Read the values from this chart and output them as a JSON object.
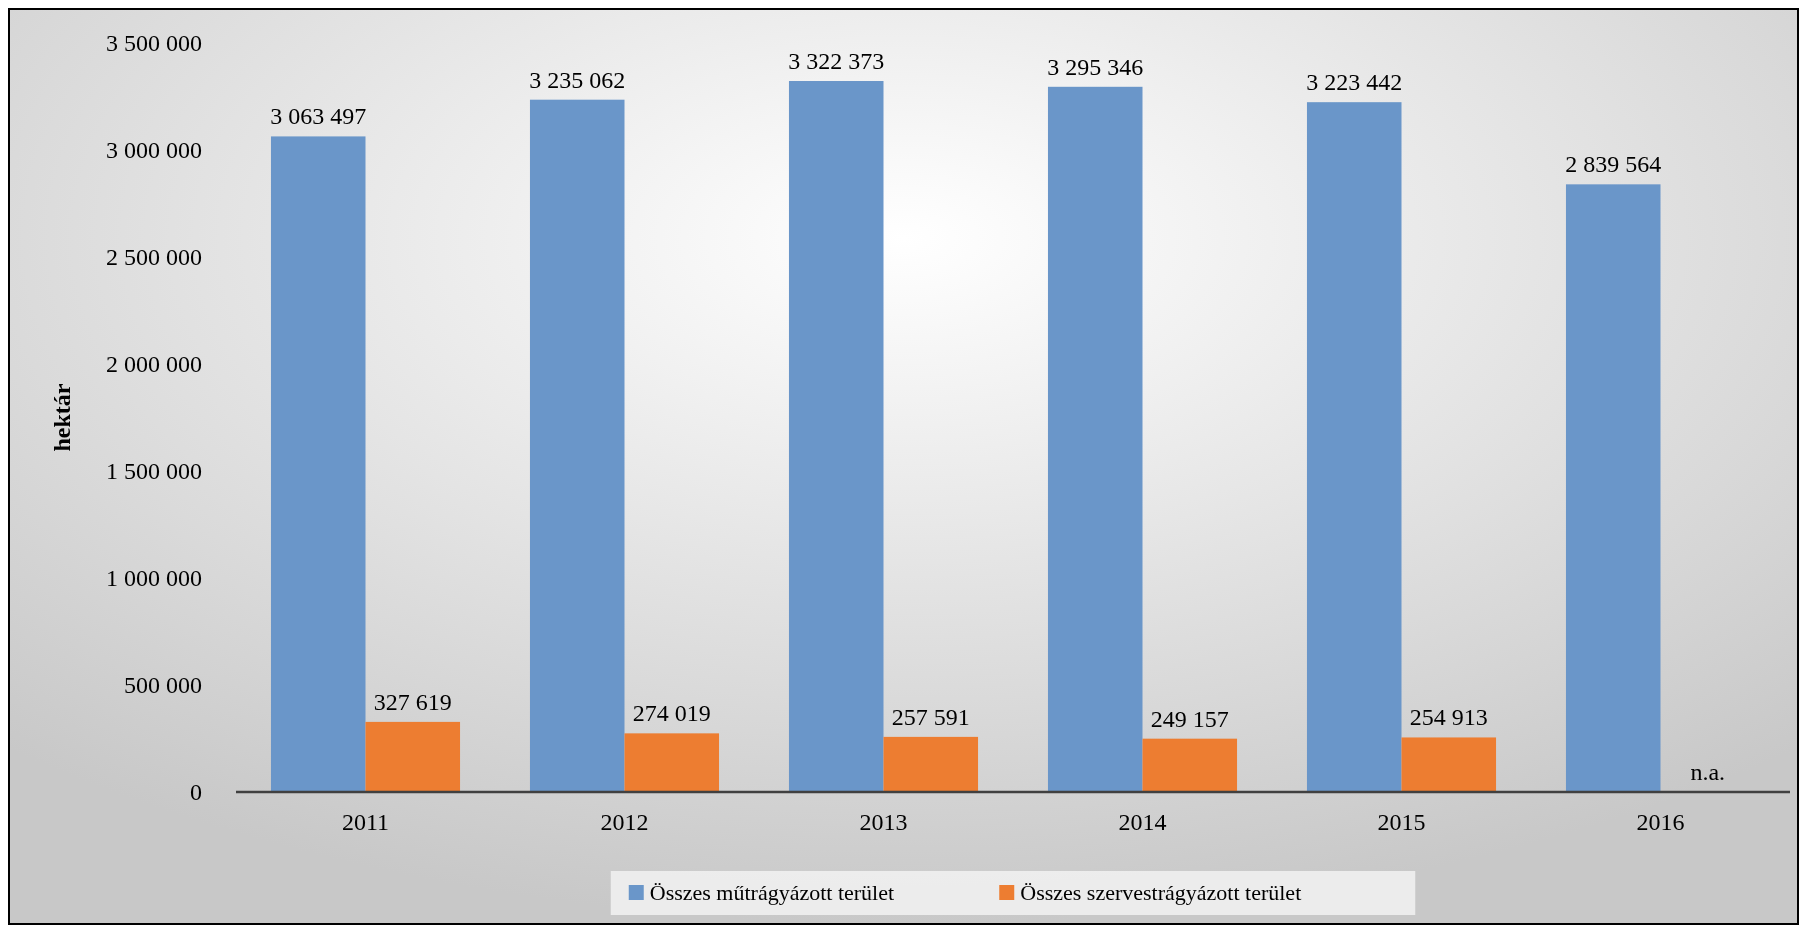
{
  "chart_data": {
    "type": "bar",
    "ylabel": "hektár",
    "categories": [
      "2011",
      "2012",
      "2013",
      "2014",
      "2015",
      "2016"
    ],
    "series": [
      {
        "name": "Összes műtrágyázott terület",
        "color": "#6a96c9",
        "values": [
          3063497,
          3235062,
          3322373,
          3295346,
          3223442,
          2839564
        ],
        "value_labels": [
          "3 063 497",
          "3 235 062",
          "3 322 373",
          "3 295 346",
          "3 223 442",
          "2 839 564"
        ]
      },
      {
        "name": "Összes szervestrágyázott terület",
        "color": "#ed7d31",
        "values": [
          327619,
          274019,
          257591,
          249157,
          254913,
          null
        ],
        "value_labels": [
          "327 619",
          "274 019",
          "257 591",
          "249 157",
          "254 913",
          "n.a."
        ]
      }
    ],
    "ylim": [
      0,
      3500000
    ],
    "yticks": [
      {
        "value": 0,
        "label": "0"
      },
      {
        "value": 500000,
        "label": "500 000"
      },
      {
        "value": 1000000,
        "label": "1 000 000"
      },
      {
        "value": 1500000,
        "label": "1 500 000"
      },
      {
        "value": 2000000,
        "label": "2 000 000"
      },
      {
        "value": 2500000,
        "label": "2 500 000"
      },
      {
        "value": 3000000,
        "label": "3 000 000"
      },
      {
        "value": 3500000,
        "label": "3 500 000"
      }
    ],
    "legend": "bottom"
  }
}
